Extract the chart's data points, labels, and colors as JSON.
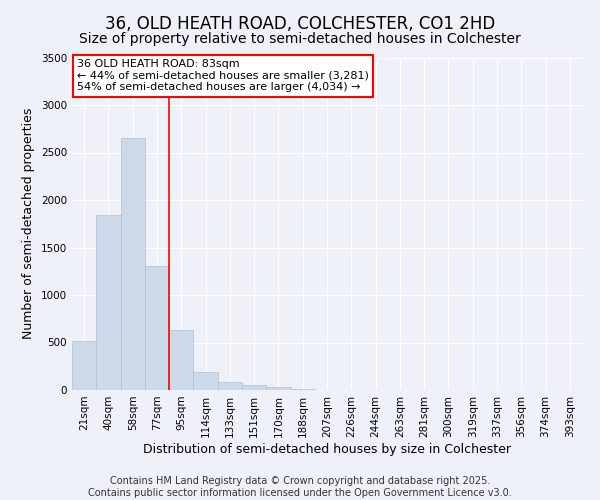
{
  "title": "36, OLD HEATH ROAD, COLCHESTER, CO1 2HD",
  "subtitle": "Size of property relative to semi-detached houses in Colchester",
  "xlabel": "Distribution of semi-detached houses by size in Colchester",
  "ylabel": "Number of semi-detached properties",
  "categories": [
    "21sqm",
    "40sqm",
    "58sqm",
    "77sqm",
    "95sqm",
    "114sqm",
    "133sqm",
    "151sqm",
    "170sqm",
    "188sqm",
    "207sqm",
    "226sqm",
    "244sqm",
    "263sqm",
    "281sqm",
    "300sqm",
    "319sqm",
    "337sqm",
    "356sqm",
    "374sqm",
    "393sqm"
  ],
  "values": [
    520,
    1840,
    2650,
    1310,
    630,
    190,
    80,
    50,
    30,
    10,
    5,
    3,
    2,
    1,
    0,
    0,
    0,
    0,
    0,
    0,
    0
  ],
  "bar_color": "#ccd9e8",
  "bar_edgecolor": "#adc0d5",
  "background_color": "#eef2f8",
  "grid_color": "#ffffff",
  "annotation_text": "36 OLD HEATH ROAD: 83sqm\n← 44% of semi-detached houses are smaller (3,281)\n54% of semi-detached houses are larger (4,034) →",
  "redline_bin_index": 3,
  "footer": "Contains HM Land Registry data © Crown copyright and database right 2025.\nContains public sector information licensed under the Open Government Licence v3.0.",
  "ylim": [
    0,
    3500
  ],
  "title_fontsize": 12,
  "subtitle_fontsize": 10,
  "tick_fontsize": 7.5,
  "ylabel_fontsize": 9,
  "xlabel_fontsize": 9,
  "footer_fontsize": 7
}
